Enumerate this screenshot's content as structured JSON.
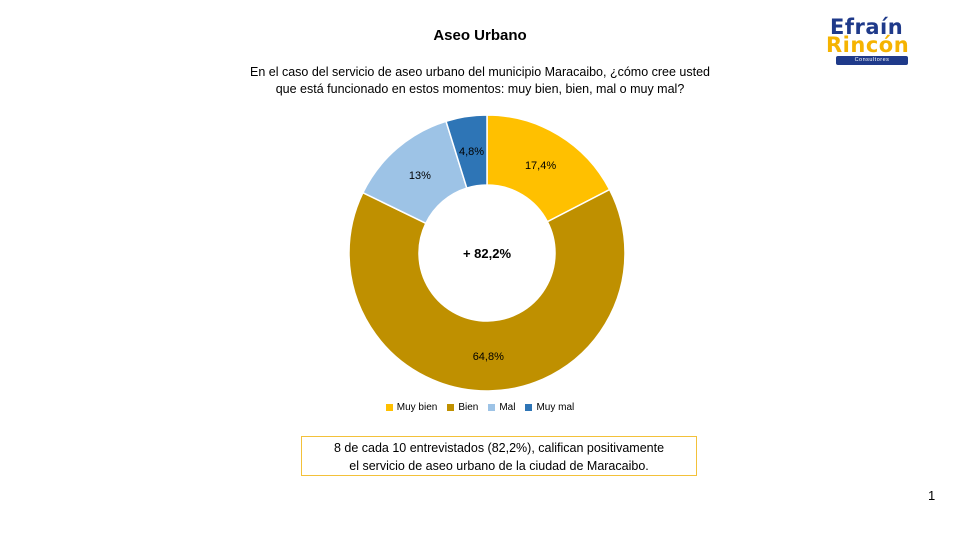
{
  "slide": {
    "title": "Aseo Urbano",
    "question_line1": "En el caso del servicio de aseo urbano del municipio Maracaibo, ¿cómo cree usted",
    "question_line2": "que está funcionado en estos momentos: muy bien, bien, mal o muy mal?",
    "note_line1": "8 de cada 10 entrevistados (82,2%), califican positivamente",
    "note_line2": "el servicio de aseo urbano de la ciudad de Maracaibo.",
    "page_number": "1"
  },
  "logo": {
    "line1": "Efraín",
    "line2": "Rincón",
    "tagline": "Consultores",
    "colors": {
      "primary": "#1f3a8a",
      "accent": "#f5b301"
    }
  },
  "chart_data": {
    "type": "pie",
    "donut": true,
    "center_label": "+ 82,2%",
    "categories": [
      "Muy bien",
      "Bien",
      "Mal",
      "Muy mal"
    ],
    "values": [
      17.4,
      64.8,
      13.0,
      4.8
    ],
    "labels": [
      "17,4%",
      "64,8%",
      "13%",
      "4,8%"
    ],
    "colors": [
      "#ffc000",
      "#bf9000",
      "#9dc3e6",
      "#2e75b6"
    ],
    "legend_position": "bottom"
  }
}
